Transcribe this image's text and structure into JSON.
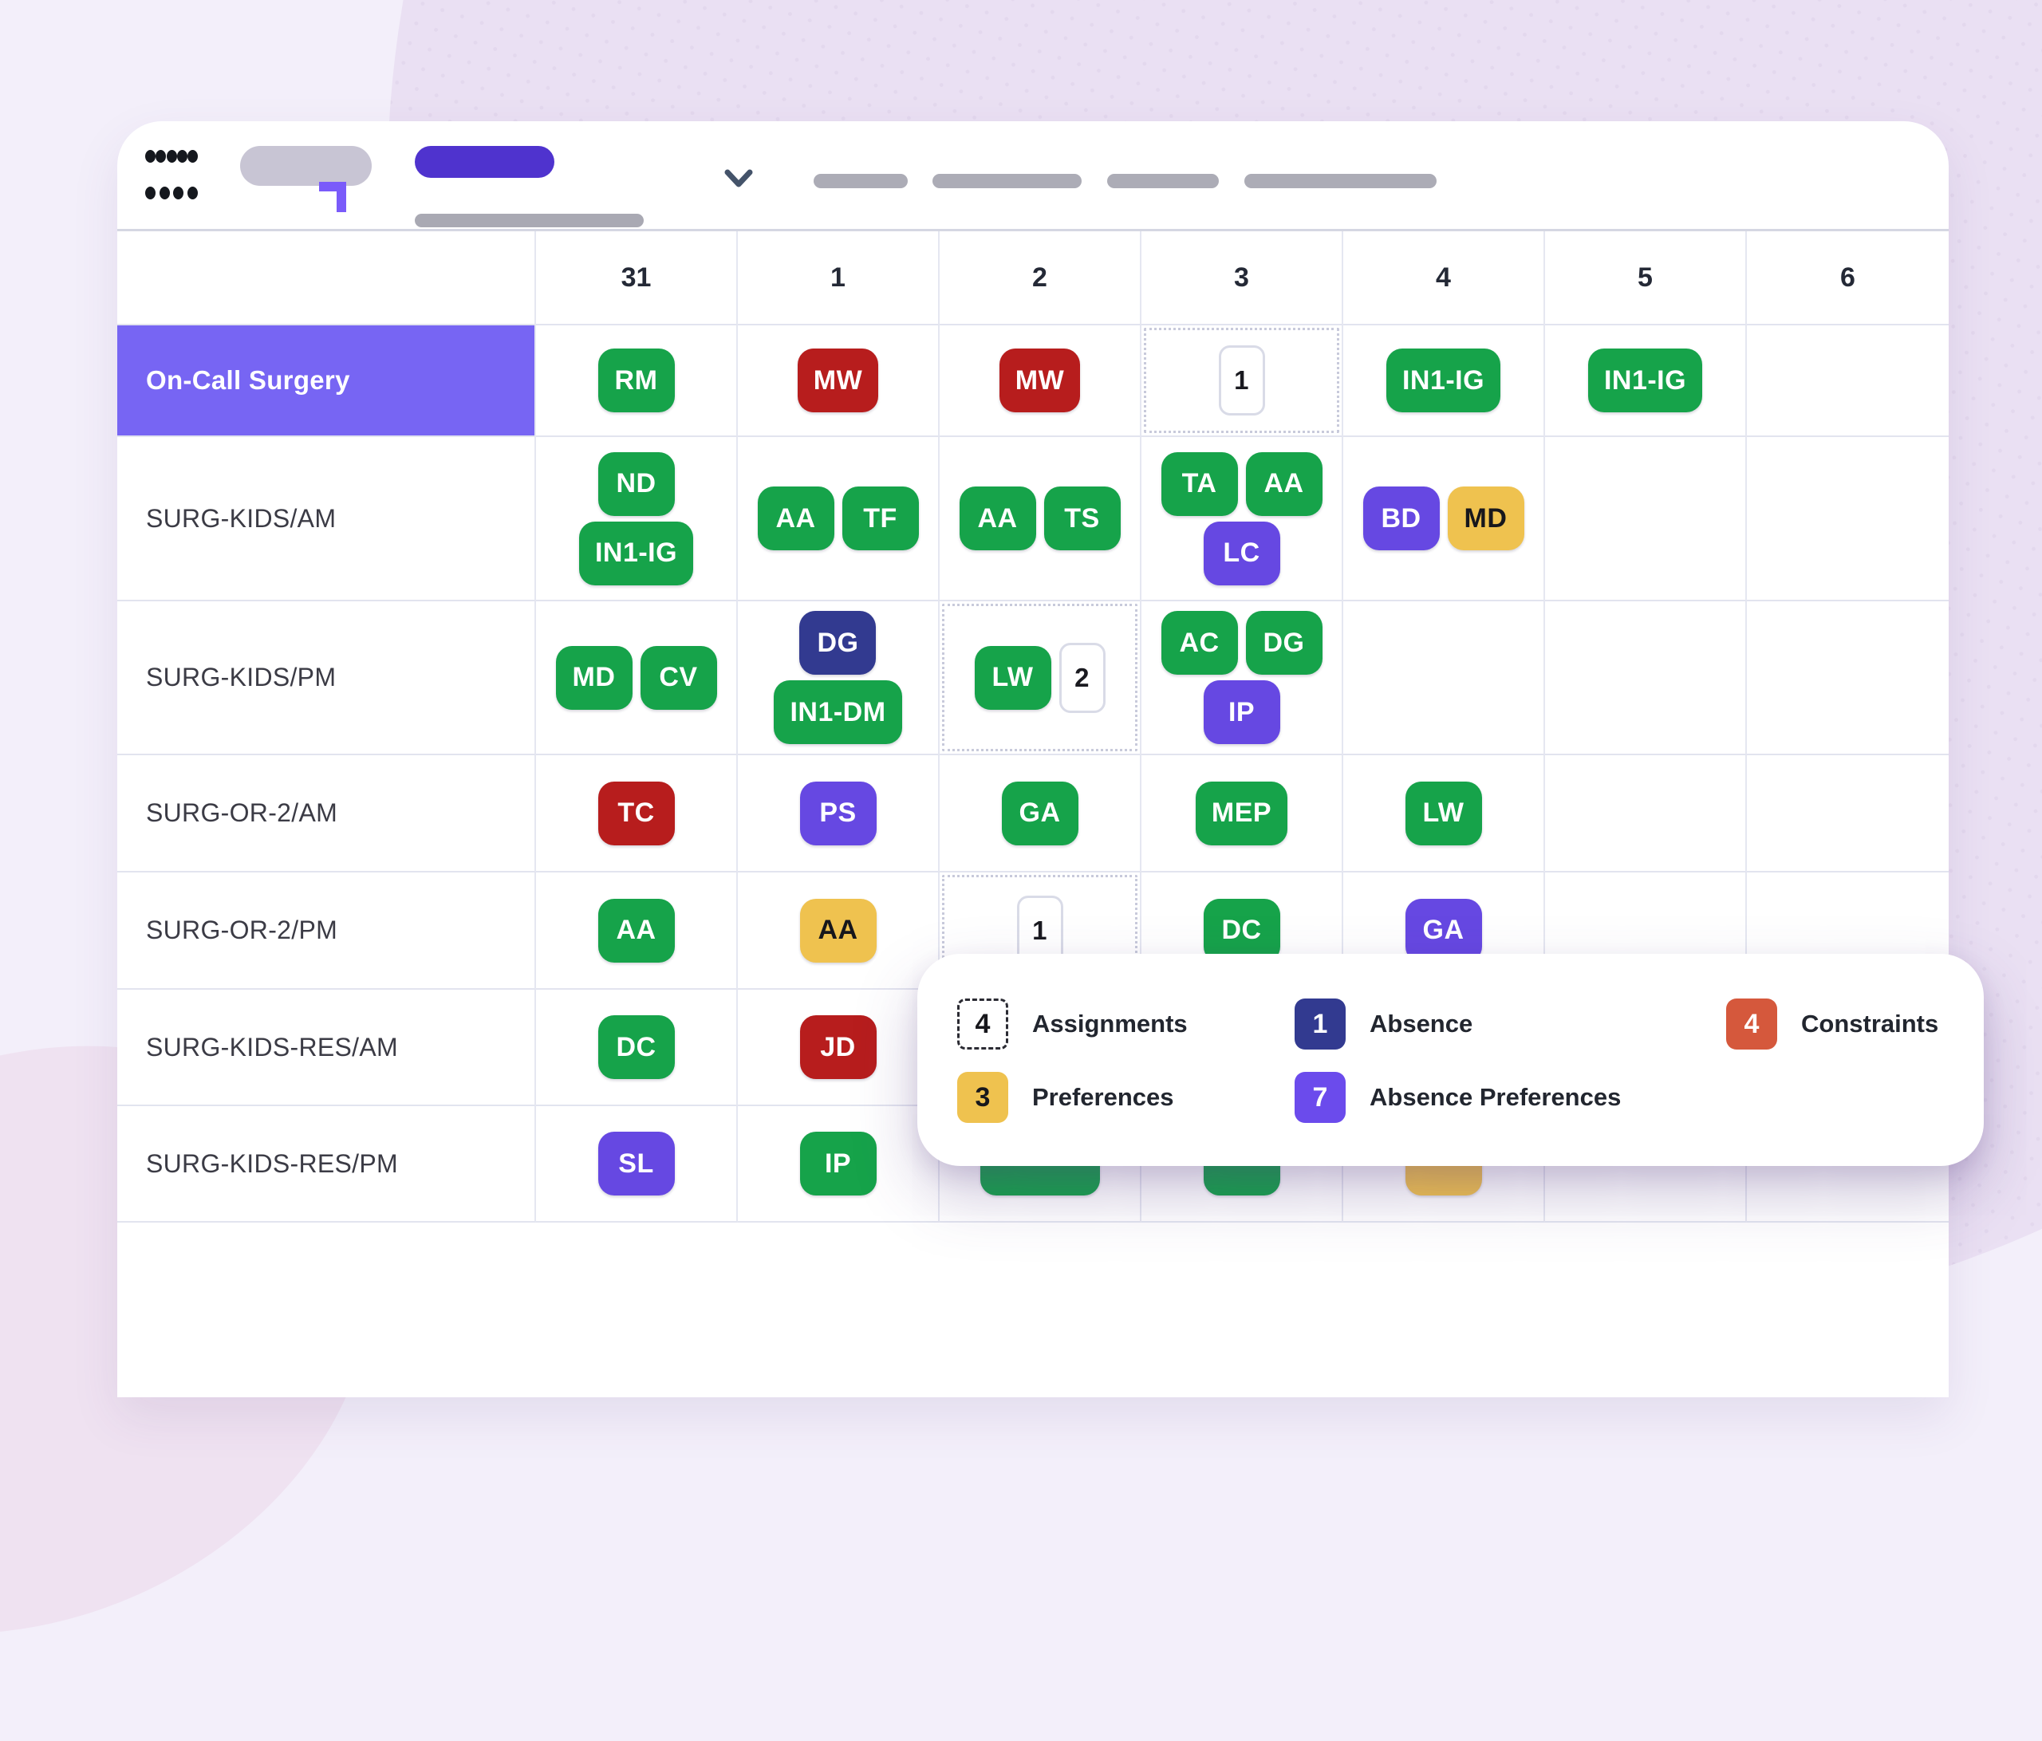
{
  "palette": {
    "green": "#16A34A",
    "red": "#B71D1D",
    "purple": "#6648E2",
    "navy": "#323A90",
    "yellow": "#EFC24F",
    "orange": "#D5583C",
    "legend_purple": "#6B4BEC",
    "row_highlight_purple": "#7765F3",
    "count_badge_border": "#D9DBE7",
    "grid_line": "#E5E7F1"
  },
  "columns": [
    "31",
    "1",
    "2",
    "3",
    "4",
    "5",
    "6"
  ],
  "rows": [
    {
      "label": "On-Call Surgery",
      "highlight": true,
      "cells": [
        {
          "b": [
            [
              {
                "t": "RM",
                "c": "green"
              }
            ]
          ]
        },
        {
          "b": [
            [
              {
                "t": "MW",
                "c": "red"
              }
            ]
          ]
        },
        {
          "b": [
            [
              {
                "t": "MW",
                "c": "red"
              }
            ]
          ]
        },
        {
          "dashed": true,
          "b": [
            [
              {
                "t": "1",
                "c": "count"
              }
            ]
          ]
        },
        {
          "b": [
            [
              {
                "t": "IN1-IG",
                "c": "green"
              }
            ]
          ]
        },
        {
          "b": [
            [
              {
                "t": "IN1-IG",
                "c": "green"
              }
            ]
          ]
        },
        {}
      ]
    },
    {
      "label": "SURG-KIDS/AM",
      "cells": [
        {
          "b": [
            [
              {
                "t": "ND",
                "c": "green"
              }
            ],
            [
              {
                "t": "IN1-IG",
                "c": "green"
              }
            ]
          ]
        },
        {
          "b": [
            [
              {
                "t": "AA",
                "c": "green"
              },
              {
                "t": "TF",
                "c": "green"
              }
            ]
          ]
        },
        {
          "b": [
            [
              {
                "t": "AA",
                "c": "green"
              },
              {
                "t": "TS",
                "c": "green"
              }
            ]
          ]
        },
        {
          "b": [
            [
              {
                "t": "TA",
                "c": "green"
              },
              {
                "t": "AA",
                "c": "green"
              }
            ],
            [
              {
                "t": "LC",
                "c": "purple"
              }
            ]
          ]
        },
        {
          "b": [
            [
              {
                "t": "BD",
                "c": "purple"
              },
              {
                "t": "MD",
                "c": "yellow"
              }
            ]
          ]
        },
        {},
        {}
      ]
    },
    {
      "label": "SURG-KIDS/PM",
      "cells": [
        {
          "b": [
            [
              {
                "t": "MD",
                "c": "green"
              },
              {
                "t": "CV",
                "c": "green"
              }
            ]
          ]
        },
        {
          "b": [
            [
              {
                "t": "DG",
                "c": "navy"
              }
            ],
            [
              {
                "t": "IN1-DM",
                "c": "green"
              }
            ]
          ]
        },
        {
          "dashed": true,
          "b": [
            [
              {
                "t": "LW",
                "c": "green"
              },
              {
                "t": "2",
                "c": "count"
              }
            ]
          ]
        },
        {
          "b": [
            [
              {
                "t": "AC",
                "c": "green"
              },
              {
                "t": "DG",
                "c": "green"
              }
            ],
            [
              {
                "t": "IP",
                "c": "purple"
              }
            ]
          ]
        },
        {},
        {},
        {}
      ]
    },
    {
      "label": "SURG-OR-2/AM",
      "cells": [
        {
          "b": [
            [
              {
                "t": "TC",
                "c": "red"
              }
            ]
          ]
        },
        {
          "b": [
            [
              {
                "t": "PS",
                "c": "purple"
              }
            ]
          ]
        },
        {
          "b": [
            [
              {
                "t": "GA",
                "c": "green"
              }
            ]
          ]
        },
        {
          "b": [
            [
              {
                "t": "MEP",
                "c": "green"
              }
            ]
          ]
        },
        {
          "b": [
            [
              {
                "t": "LW",
                "c": "green"
              }
            ]
          ]
        },
        {},
        {}
      ]
    },
    {
      "label": "SURG-OR-2/PM",
      "cells": [
        {
          "b": [
            [
              {
                "t": "AA",
                "c": "green"
              }
            ]
          ]
        },
        {
          "b": [
            [
              {
                "t": "AA",
                "c": "yellow"
              }
            ]
          ]
        },
        {
          "dashed": true,
          "b": [
            [
              {
                "t": "1",
                "c": "count"
              }
            ]
          ]
        },
        {
          "b": [
            [
              {
                "t": "DC",
                "c": "green"
              }
            ]
          ]
        },
        {
          "b": [
            [
              {
                "t": "GA",
                "c": "purple"
              }
            ]
          ]
        },
        {},
        {}
      ]
    },
    {
      "label": "SURG-KIDS-RES/AM",
      "cells": [
        {
          "b": [
            [
              {
                "t": "DC",
                "c": "green"
              }
            ]
          ]
        },
        {
          "b": [
            [
              {
                "t": "JD",
                "c": "red"
              }
            ]
          ]
        },
        {},
        {},
        {},
        {},
        {}
      ]
    },
    {
      "label": "SURG-KIDS-RES/PM",
      "cells": [
        {
          "b": [
            [
              {
                "t": "SL",
                "c": "purple"
              }
            ]
          ]
        },
        {
          "b": [
            [
              {
                "t": "IP",
                "c": "green"
              }
            ]
          ]
        },
        {
          "b": [
            [
              {
                "t": "",
                "c": "green",
                "w": 150
              }
            ]
          ]
        },
        {
          "b": [
            [
              {
                "t": "",
                "c": "green",
                "w": 96
              }
            ]
          ]
        },
        {
          "b": [
            [
              {
                "t": "",
                "c": "yellow",
                "w": 96
              }
            ]
          ]
        },
        {},
        {}
      ]
    }
  ],
  "legend": {
    "items": [
      {
        "count": "4",
        "label": "Assignments",
        "style": "assignments"
      },
      {
        "count": "1",
        "label": "Absence",
        "style": "absence"
      },
      {
        "count": "4",
        "label": "Constraints",
        "style": "constraints"
      },
      {
        "count": "3",
        "label": "Preferences",
        "style": "preferences"
      },
      {
        "count": "7",
        "label": "Absence Preferences",
        "style": "absence_preferences"
      }
    ]
  }
}
